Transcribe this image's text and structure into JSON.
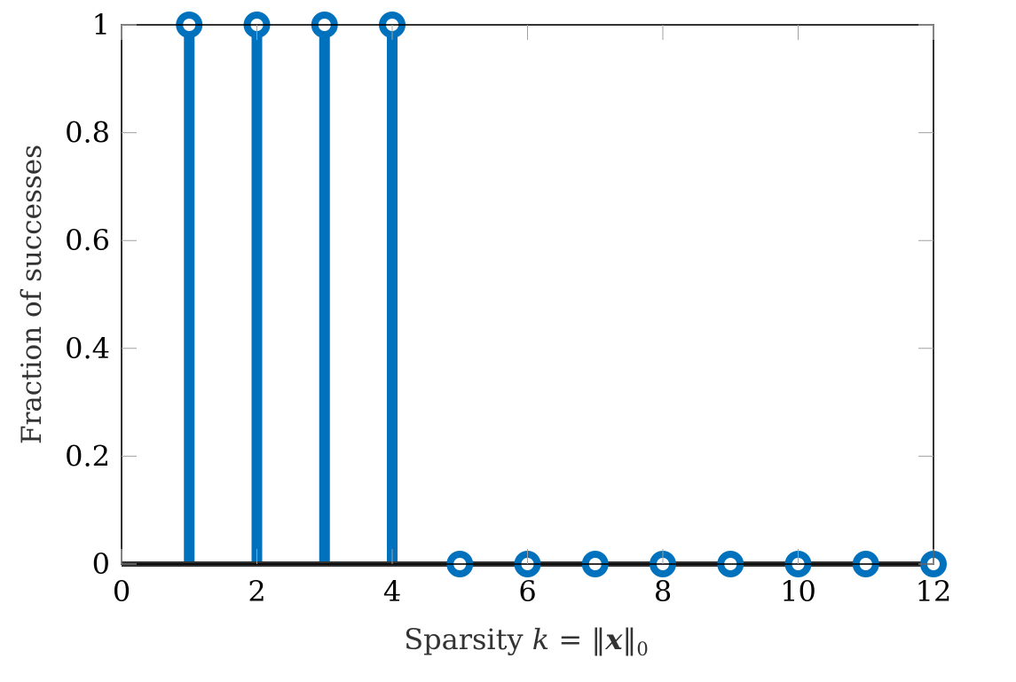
{
  "chart_data": {
    "type": "stem",
    "x": [
      1,
      2,
      3,
      4,
      5,
      6,
      7,
      8,
      9,
      10,
      11,
      12
    ],
    "y": [
      1,
      1,
      1,
      1,
      0,
      0,
      0,
      0,
      0,
      0,
      0,
      0
    ],
    "xlim": [
      0,
      12
    ],
    "ylim": [
      0,
      1
    ],
    "xticks": [
      0,
      2,
      4,
      6,
      8,
      10,
      12
    ],
    "xtick_labels": [
      "0",
      "2",
      "4",
      "6",
      "8",
      "10",
      "12"
    ],
    "yticks": [
      0,
      0.2,
      0.4,
      0.6,
      0.8,
      1
    ],
    "ytick_labels": [
      "0",
      "0.2",
      "0.4",
      "0.6",
      "0.8",
      "1"
    ],
    "xlabel": {
      "prefix": "Sparsity ",
      "var": "k",
      "eq": " = ",
      "bar_open": "‖",
      "vec": "x",
      "bar_close": "‖",
      "sub": "0"
    },
    "ylabel": "Fraction of successes",
    "title": "",
    "grid": false,
    "colors": {
      "stem": "#0072BD",
      "baseline": "#333333",
      "axes": "#000000",
      "tick": "#a0a0a0"
    }
  }
}
